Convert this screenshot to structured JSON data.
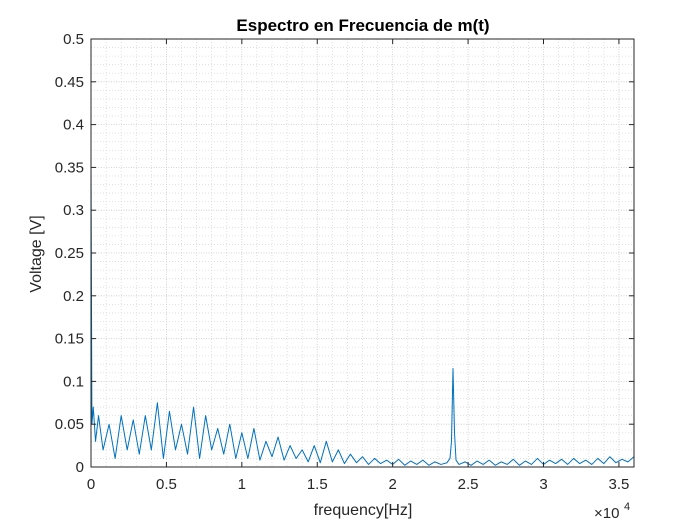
{
  "chart_data": {
    "type": "line",
    "title": "Espectro en Frecuencia de m(t)",
    "xlabel": "frequency[Hz]",
    "ylabel": "Voltage [V]",
    "x_exponent_label": "×10",
    "x_exponent": "4",
    "xlim": [
      0,
      36000
    ],
    "ylim": [
      0,
      0.5
    ],
    "xticks": [
      0,
      5000,
      10000,
      15000,
      20000,
      25000,
      30000,
      35000
    ],
    "xtick_labels": [
      "0",
      "0.5",
      "1",
      "1.5",
      "2",
      "2.5",
      "3",
      "3.5"
    ],
    "yticks": [
      0,
      0.05,
      0.1,
      0.15,
      0.2,
      0.25,
      0.3,
      0.35,
      0.4,
      0.45,
      0.5
    ],
    "ytick_labels": [
      "0",
      "0.05",
      "0.1",
      "0.15",
      "0.2",
      "0.25",
      "0.3",
      "0.35",
      "0.4",
      "0.45",
      "0.5"
    ],
    "grid": true,
    "minor_grid": true,
    "series": [
      {
        "color": "#0072BD",
        "x": [
          0,
          60,
          150,
          300,
          500,
          800,
          1200,
          1600,
          2000,
          2400,
          2800,
          3200,
          3600,
          4000,
          4400,
          4800,
          5200,
          5600,
          6000,
          6400,
          6800,
          7200,
          7600,
          8000,
          8400,
          8800,
          9200,
          9600,
          10000,
          10400,
          10800,
          11200,
          11600,
          12000,
          12400,
          12800,
          13200,
          13600,
          14000,
          14400,
          14800,
          15200,
          15600,
          16000,
          16400,
          16800,
          17200,
          17600,
          18000,
          18400,
          18800,
          19200,
          19600,
          20000,
          20400,
          20800,
          21200,
          21600,
          22000,
          22400,
          22800,
          23200,
          23600,
          23800,
          23900,
          24000,
          24100,
          24200,
          24400,
          24800,
          25200,
          25600,
          26000,
          26400,
          26800,
          27200,
          27600,
          28000,
          28400,
          28800,
          29200,
          29600,
          30000,
          30400,
          30800,
          31200,
          31600,
          32000,
          32400,
          32800,
          33200,
          33600,
          34000,
          34400,
          34800,
          35200,
          35600,
          36000
        ],
        "values": [
          0.36,
          0.05,
          0.07,
          0.03,
          0.06,
          0.02,
          0.05,
          0.01,
          0.06,
          0.02,
          0.055,
          0.015,
          0.06,
          0.02,
          0.075,
          0.01,
          0.065,
          0.02,
          0.05,
          0.015,
          0.07,
          0.01,
          0.06,
          0.02,
          0.045,
          0.015,
          0.05,
          0.01,
          0.04,
          0.01,
          0.045,
          0.008,
          0.03,
          0.012,
          0.035,
          0.008,
          0.025,
          0.01,
          0.02,
          0.006,
          0.025,
          0.005,
          0.03,
          0.006,
          0.02,
          0.004,
          0.015,
          0.005,
          0.012,
          0.003,
          0.01,
          0.004,
          0.008,
          0.003,
          0.009,
          0.002,
          0.007,
          0.003,
          0.008,
          0.002,
          0.006,
          0.003,
          0.005,
          0.01,
          0.03,
          0.115,
          0.04,
          0.008,
          0.003,
          0.006,
          0.002,
          0.007,
          0.003,
          0.008,
          0.002,
          0.006,
          0.003,
          0.009,
          0.002,
          0.007,
          0.003,
          0.01,
          0.003,
          0.008,
          0.004,
          0.009,
          0.003,
          0.01,
          0.004,
          0.008,
          0.003,
          0.01,
          0.004,
          0.012,
          0.005,
          0.009,
          0.006,
          0.012
        ]
      }
    ]
  }
}
